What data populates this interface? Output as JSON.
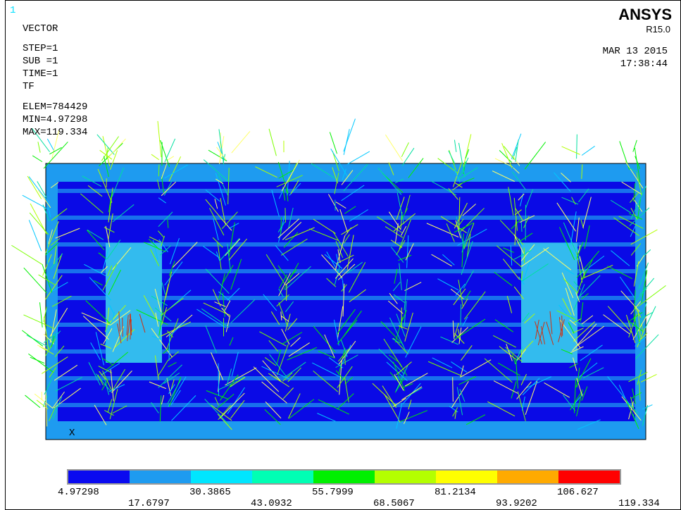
{
  "header": {
    "window_number": "1",
    "plot_type": "VECTOR",
    "step": "STEP=1",
    "sub": "SUB =1",
    "time": "TIME=1",
    "item": "TF",
    "elem": "ELEM=784429",
    "min": "MIN=4.97298",
    "max": "MAX=119.334"
  },
  "logo": {
    "name": "ANSYS",
    "version": "R15.0",
    "date": "MAR 13 2015",
    "time": "17:38:44"
  },
  "axis_label": "X",
  "legend": {
    "colors": [
      "#0a0af0",
      "#1e9bf0",
      "#00e6ff",
      "#00ffb4",
      "#00f000",
      "#b4ff00",
      "#ffff00",
      "#ffaa00",
      "#ff0000"
    ],
    "labels": [
      4.97298,
      17.6797,
      30.3865,
      43.0932,
      55.7999,
      68.5067,
      81.2134,
      93.9202,
      106.627,
      119.334
    ]
  }
}
